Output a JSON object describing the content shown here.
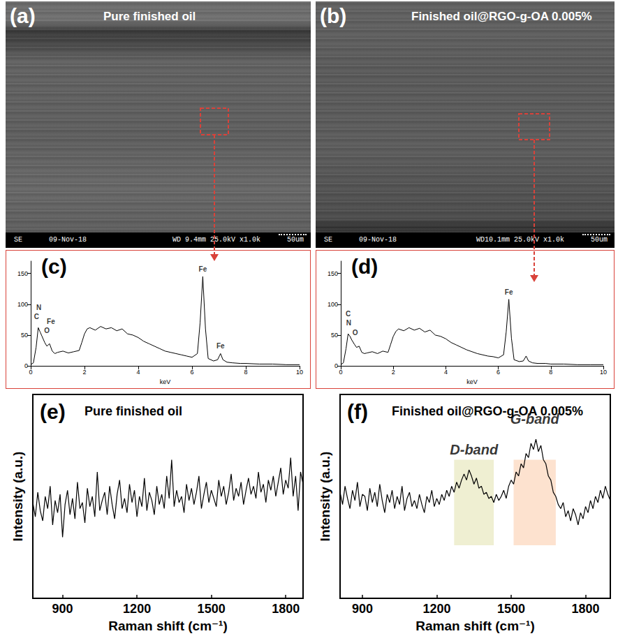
{
  "sem_images": [
    {
      "panel_label": "(a)",
      "title": "Pure finished oil",
      "info_bar": [
        "SE",
        "09-Nov-18",
        "WD 9.4mm 25.0kV x1.0k",
        "50um"
      ]
    },
    {
      "panel_label": "(b)",
      "title": "Finished oil@RGO-g-OA 0.005%",
      "info_bar": [
        "SE",
        "09-Nov-18",
        "WD10.1mm 25.0kV x1.0k",
        "50um"
      ]
    }
  ],
  "chart_data": [
    {
      "type": "line",
      "panel_label": "(c)",
      "x_label": "keV",
      "color": "#000000",
      "x": [
        0,
        0.1,
        0.2,
        0.28,
        0.35,
        0.42,
        0.52,
        0.6,
        0.7,
        0.8,
        0.9,
        1.0,
        1.2,
        1.4,
        1.6,
        1.8,
        1.9,
        2.0,
        2.1,
        2.2,
        2.4,
        2.6,
        2.8,
        3.0,
        3.2,
        3.4,
        3.6,
        3.8,
        4.0,
        4.2,
        4.4,
        4.6,
        4.8,
        5.0,
        5.2,
        5.4,
        5.6,
        5.8,
        6.0,
        6.2,
        6.3,
        6.4,
        6.5,
        6.6,
        6.8,
        6.95,
        7.06,
        7.15,
        7.3,
        7.5,
        7.8,
        8.0,
        8.5,
        9.0,
        9.5,
        10.0
      ],
      "values": [
        2,
        5,
        30,
        62,
        55,
        48,
        38,
        32,
        36,
        24,
        20,
        22,
        24,
        21,
        23,
        25,
        38,
        52,
        60,
        62,
        58,
        64,
        60,
        62,
        57,
        60,
        52,
        50,
        46,
        40,
        36,
        32,
        28,
        24,
        22,
        20,
        18,
        16,
        14,
        20,
        70,
        145,
        60,
        12,
        8,
        10,
        20,
        10,
        6,
        5,
        4,
        4,
        3,
        3,
        2,
        2
      ],
      "xlim": [
        0,
        10
      ],
      "xticks": [
        0,
        2,
        4,
        6,
        8,
        10
      ],
      "ylim": [
        0,
        170
      ],
      "yticks": [
        0,
        50,
        100,
        150
      ],
      "annotations": [
        {
          "text": "N",
          "x": 0.3,
          "y": 95
        },
        {
          "text": "C",
          "x": 0.22,
          "y": 80
        },
        {
          "text": "Fe",
          "x": 0.75,
          "y": 72
        },
        {
          "text": "O",
          "x": 0.6,
          "y": 57
        },
        {
          "text": "Fe",
          "x": 6.4,
          "y": 157
        },
        {
          "text": "Fe",
          "x": 7.06,
          "y": 32
        }
      ]
    },
    {
      "type": "line",
      "panel_label": "(d)",
      "x_label": "keV",
      "color": "#000000",
      "x": [
        0,
        0.1,
        0.2,
        0.28,
        0.35,
        0.42,
        0.52,
        0.6,
        0.7,
        0.8,
        0.9,
        1.0,
        1.2,
        1.4,
        1.6,
        1.8,
        1.9,
        2.0,
        2.1,
        2.2,
        2.4,
        2.6,
        2.8,
        3.0,
        3.2,
        3.4,
        3.6,
        3.8,
        4.0,
        4.2,
        4.4,
        4.6,
        4.8,
        5.0,
        5.2,
        5.4,
        5.6,
        5.8,
        6.0,
        6.2,
        6.3,
        6.4,
        6.5,
        6.6,
        6.8,
        6.95,
        7.06,
        7.15,
        7.3,
        7.5,
        7.8,
        8.0,
        8.5,
        9.0,
        9.5,
        10.0
      ],
      "values": [
        2,
        5,
        28,
        52,
        48,
        42,
        35,
        30,
        32,
        22,
        20,
        21,
        23,
        20,
        24,
        22,
        35,
        48,
        56,
        60,
        57,
        62,
        58,
        61,
        55,
        58,
        50,
        48,
        44,
        38,
        34,
        30,
        26,
        23,
        20,
        18,
        16,
        15,
        13,
        18,
        55,
        108,
        45,
        10,
        7,
        8,
        16,
        8,
        5,
        4,
        4,
        3,
        3,
        2,
        2,
        2
      ],
      "xlim": [
        0,
        10
      ],
      "xticks": [
        0,
        2,
        4,
        6,
        8,
        10
      ],
      "ylim": [
        0,
        170
      ],
      "yticks": [
        0,
        50,
        100,
        150
      ],
      "annotations": [
        {
          "text": "C",
          "x": 0.28,
          "y": 84
        },
        {
          "text": "N",
          "x": 0.3,
          "y": 70
        },
        {
          "text": "O",
          "x": 0.55,
          "y": 54
        },
        {
          "text": "Fe",
          "x": 6.4,
          "y": 120
        }
      ]
    },
    {
      "type": "line",
      "panel_label": "(e)",
      "title": "Pure finished oil",
      "x_label": "Raman shift (cm⁻¹)",
      "y_label": "Intensity (a.u.)",
      "color": "#000000",
      "x": [
        780,
        790,
        800,
        810,
        820,
        830,
        840,
        850,
        860,
        870,
        880,
        890,
        900,
        910,
        920,
        930,
        940,
        950,
        960,
        970,
        980,
        990,
        1000,
        1010,
        1020,
        1030,
        1040,
        1050,
        1060,
        1070,
        1080,
        1090,
        1100,
        1110,
        1120,
        1130,
        1140,
        1150,
        1160,
        1170,
        1180,
        1190,
        1200,
        1210,
        1220,
        1230,
        1240,
        1250,
        1260,
        1270,
        1280,
        1290,
        1300,
        1310,
        1320,
        1330,
        1340,
        1350,
        1360,
        1370,
        1380,
        1390,
        1400,
        1410,
        1420,
        1430,
        1440,
        1450,
        1460,
        1470,
        1480,
        1490,
        1500,
        1510,
        1520,
        1530,
        1540,
        1550,
        1560,
        1570,
        1580,
        1590,
        1600,
        1610,
        1620,
        1630,
        1640,
        1650,
        1660,
        1670,
        1680,
        1690,
        1700,
        1710,
        1720,
        1730,
        1740,
        1750,
        1760,
        1770,
        1780,
        1790,
        1800,
        1810,
        1820,
        1830,
        1840,
        1850,
        1860,
        1870
      ],
      "values": [
        0.47,
        0.4,
        0.52,
        0.43,
        0.38,
        0.5,
        0.44,
        0.55,
        0.36,
        0.48,
        0.42,
        0.51,
        0.3,
        0.46,
        0.53,
        0.41,
        0.49,
        0.39,
        0.57,
        0.44,
        0.47,
        0.37,
        0.54,
        0.45,
        0.5,
        0.4,
        0.62,
        0.43,
        0.48,
        0.52,
        0.41,
        0.55,
        0.46,
        0.39,
        0.51,
        0.58,
        0.44,
        0.49,
        0.42,
        0.56,
        0.47,
        0.53,
        0.4,
        0.5,
        0.45,
        0.59,
        0.43,
        0.52,
        0.48,
        0.41,
        0.55,
        0.46,
        0.51,
        0.44,
        0.6,
        0.49,
        0.68,
        0.45,
        0.53,
        0.47,
        0.5,
        0.42,
        0.56,
        0.48,
        0.54,
        0.46,
        0.52,
        0.6,
        0.44,
        0.51,
        0.57,
        0.47,
        0.53,
        0.49,
        0.45,
        0.58,
        0.5,
        0.55,
        0.46,
        0.52,
        0.61,
        0.48,
        0.54,
        0.5,
        0.57,
        0.46,
        0.53,
        0.59,
        0.51,
        0.55,
        0.49,
        0.62,
        0.52,
        0.56,
        0.47,
        0.58,
        0.53,
        0.6,
        0.5,
        0.57,
        0.64,
        0.51,
        0.58,
        0.54,
        0.69,
        0.5,
        0.6,
        0.43,
        0.62,
        0.56
      ],
      "xlim": [
        780,
        1870
      ],
      "xticks": [
        900,
        1200,
        1500,
        1800
      ],
      "ylim": [
        0,
        1
      ],
      "tick_labels": "x"
    },
    {
      "type": "line",
      "panel_label": "(f)",
      "title": "Finished oil@RGO-g-OA 0.005%",
      "x_label": "Raman shift (cm⁻¹)",
      "y_label": "Intensity (a.u.)",
      "color": "#000000",
      "x": [
        810,
        820,
        830,
        840,
        850,
        860,
        870,
        880,
        890,
        900,
        910,
        920,
        930,
        940,
        950,
        960,
        970,
        980,
        990,
        1000,
        1010,
        1020,
        1030,
        1040,
        1050,
        1060,
        1070,
        1080,
        1090,
        1100,
        1110,
        1120,
        1130,
        1140,
        1150,
        1160,
        1170,
        1180,
        1190,
        1200,
        1210,
        1220,
        1230,
        1240,
        1250,
        1260,
        1270,
        1280,
        1290,
        1300,
        1310,
        1320,
        1330,
        1340,
        1350,
        1360,
        1370,
        1380,
        1390,
        1400,
        1410,
        1420,
        1430,
        1440,
        1450,
        1460,
        1470,
        1480,
        1490,
        1500,
        1510,
        1520,
        1530,
        1540,
        1550,
        1560,
        1570,
        1580,
        1590,
        1600,
        1610,
        1620,
        1630,
        1640,
        1650,
        1660,
        1670,
        1680,
        1690,
        1700,
        1710,
        1720,
        1730,
        1740,
        1750,
        1760,
        1770,
        1780,
        1790,
        1800,
        1810,
        1820,
        1830,
        1840,
        1850,
        1860,
        1870,
        1880,
        1890,
        1900
      ],
      "values": [
        0.52,
        0.46,
        0.55,
        0.49,
        0.44,
        0.53,
        0.48,
        0.57,
        0.45,
        0.51,
        0.5,
        0.43,
        0.54,
        0.47,
        0.52,
        0.45,
        0.56,
        0.48,
        0.42,
        0.51,
        0.47,
        0.53,
        0.44,
        0.5,
        0.46,
        0.55,
        0.43,
        0.49,
        0.52,
        0.45,
        0.48,
        0.44,
        0.51,
        0.46,
        0.42,
        0.5,
        0.47,
        0.53,
        0.45,
        0.49,
        0.46,
        0.51,
        0.48,
        0.53,
        0.5,
        0.55,
        0.52,
        0.57,
        0.54,
        0.58,
        0.61,
        0.58,
        0.63,
        0.6,
        0.56,
        0.59,
        0.54,
        0.55,
        0.51,
        0.52,
        0.49,
        0.5,
        0.47,
        0.51,
        0.48,
        0.5,
        0.53,
        0.49,
        0.55,
        0.58,
        0.56,
        0.62,
        0.6,
        0.66,
        0.64,
        0.71,
        0.69,
        0.76,
        0.73,
        0.78,
        0.72,
        0.75,
        0.68,
        0.66,
        0.6,
        0.58,
        0.52,
        0.5,
        0.46,
        0.44,
        0.47,
        0.4,
        0.43,
        0.38,
        0.44,
        0.41,
        0.36,
        0.42,
        0.39,
        0.45,
        0.42,
        0.48,
        0.44,
        0.5,
        0.47,
        0.53,
        0.49,
        0.55,
        0.51,
        0.48
      ],
      "xlim": [
        810,
        1900
      ],
      "xticks": [
        900,
        1200,
        1500,
        1800
      ],
      "ylim": [
        0,
        1
      ],
      "tick_labels": "x",
      "bands": [
        {
          "x": [
            1270,
            1430
          ],
          "y": [
            0.26,
            0.68
          ],
          "color": "#efefd2"
        },
        {
          "x": [
            1510,
            1680
          ],
          "y": [
            0.26,
            0.68
          ],
          "color": "#fde2cf"
        }
      ],
      "annotations": [
        {
          "text": "D-band",
          "x": 1350,
          "y": 0.73
        },
        {
          "text": "G-band",
          "x": 1595,
          "y": 0.88
        }
      ]
    }
  ]
}
